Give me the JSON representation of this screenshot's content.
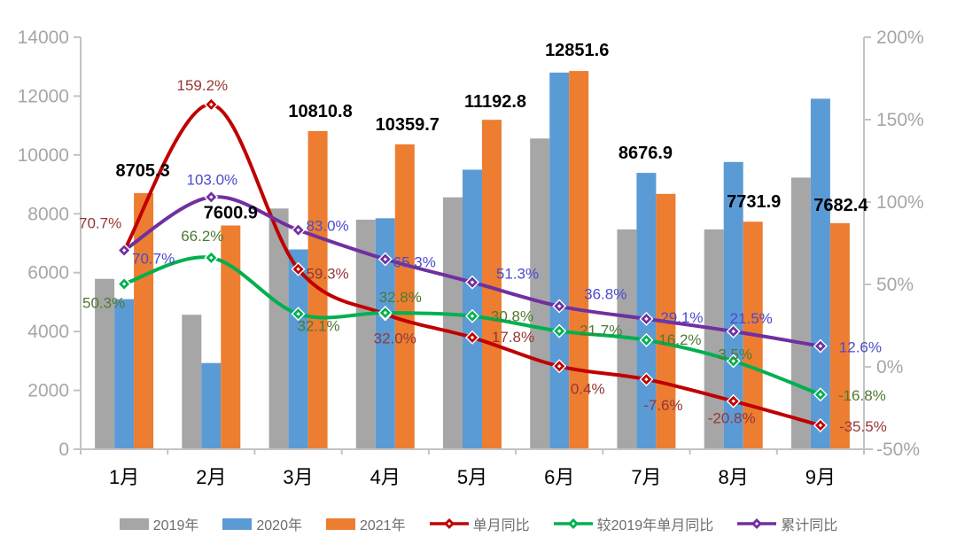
{
  "chart_data": {
    "type": "combo-bar-line",
    "title": "",
    "categories": [
      "1月",
      "2月",
      "3月",
      "4月",
      "5月",
      "6月",
      "7月",
      "8月",
      "9月"
    ],
    "bar_series": [
      {
        "key": "2019",
        "name": "2019年",
        "color": "#a6a6a6",
        "values": [
          5790,
          4570,
          8180,
          7800,
          8560,
          10560,
          7470,
          7470,
          9230
        ]
      },
      {
        "key": "2020",
        "name": "2020年",
        "color": "#5b9bd5",
        "values": [
          5100,
          2930,
          6790,
          7850,
          9500,
          12800,
          9390,
          9760,
          11910
        ]
      },
      {
        "key": "2021",
        "name": "2021年",
        "color": "#ed7d31",
        "values": [
          8705.3,
          7600.9,
          10810.8,
          10359.7,
          11192.8,
          12851.6,
          8676.9,
          7731.9,
          7682.4
        ],
        "value_labels": [
          "8705.3",
          "7600.9",
          "10810.8",
          "10359.7",
          "11192.8",
          "12851.6",
          "8676.9",
          "7731.9",
          "7682.4"
        ],
        "label_color": "#000000",
        "label_dx": [
          -1,
          0,
          3,
          3,
          4,
          -2,
          -23,
          1,
          1
        ],
        "label_dy": [
          26,
          15,
          23,
          23,
          21,
          24,
          47,
          23,
          21
        ]
      }
    ],
    "line_series": [
      {
        "key": "monthly-yoy",
        "name": "单月同比",
        "color": "#c00000",
        "label_color": "#953735",
        "values": [
          70.7,
          159.2,
          59.3,
          32.0,
          17.8,
          0.4,
          -7.6,
          -20.8,
          -35.5
        ],
        "labels": [
          "70.7%",
          "159.2%",
          "59.3%",
          "32.0%",
          "17.8%",
          "0.4%",
          "-7.6%",
          "-20.8%",
          "-35.5%"
        ],
        "label_dx": [
          -27,
          -10,
          33,
          11,
          46,
          32,
          19,
          -2,
          48
        ],
        "label_dy": [
          -31,
          -22,
          5,
          27,
          -1,
          25,
          29,
          19,
          1
        ]
      },
      {
        "key": "vs-2019-monthly-yoy",
        "name": "较2019年单月同比",
        "color": "#00b050",
        "label_color": "#4e7931",
        "values": [
          50.3,
          66.2,
          32.1,
          32.8,
          30.8,
          21.7,
          16.2,
          3.5,
          -16.8
        ],
        "labels": [
          "50.3%",
          "66.2%",
          "32.1%",
          "32.8%",
          "30.8%",
          "21.7%",
          "16.2%",
          "3.5%",
          "-16.8%"
        ],
        "label_dx": [
          -23,
          -10,
          23,
          17,
          45,
          47,
          38,
          2,
          47
        ],
        "label_dy": [
          21,
          -25,
          13,
          -18,
          0,
          -1,
          -1,
          -8,
          1
        ]
      },
      {
        "key": "cumulative-yoy",
        "name": "累计同比",
        "color": "#7030a0",
        "label_color": "#4a4ace",
        "values": [
          70.7,
          103.0,
          83.0,
          65.3,
          51.3,
          36.8,
          29.1,
          21.5,
          12.6
        ],
        "labels": [
          "70.7%",
          "103.0%",
          "83.0%",
          "65.3%",
          "51.3%",
          "36.8%",
          "29.1%",
          "21.5%",
          "12.6%"
        ],
        "label_dx": [
          33,
          1,
          33,
          33,
          51,
          52,
          40,
          20,
          45
        ],
        "label_dy": [
          9,
          -20,
          -5,
          3,
          -10,
          -14,
          -2,
          -15,
          1
        ]
      }
    ],
    "left_axis": {
      "min": 0,
      "max": 14000,
      "step": 2000,
      "tick_labels": [
        "0",
        "2000",
        "4000",
        "6000",
        "8000",
        "10000",
        "12000",
        "14000"
      ]
    },
    "right_axis": {
      "min": -50,
      "max": 200,
      "step": 50,
      "tick_labels": [
        "-50%",
        "0%",
        "50%",
        "100%",
        "150%",
        "200%"
      ]
    },
    "grid": false,
    "legend_position": "bottom",
    "styles": {
      "background": "#ffffff",
      "axis_line_color": "#c3c3c3",
      "axis_tick_label_color": "#a6a6a6",
      "month_label_color": "#000000",
      "legend_text_color": "#6e6e6e"
    }
  }
}
